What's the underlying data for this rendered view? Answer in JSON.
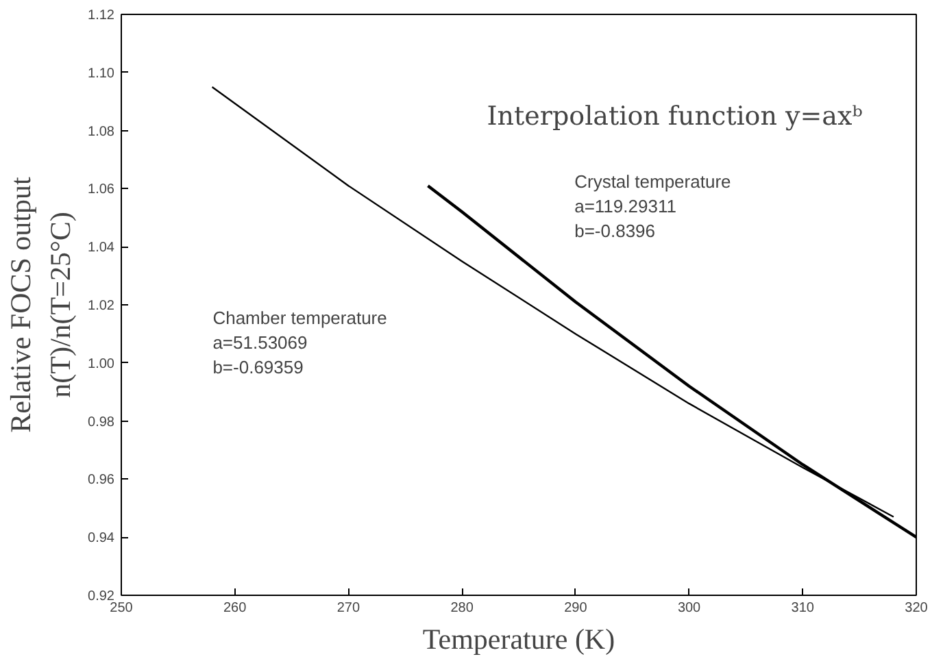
{
  "chart_data": {
    "type": "line",
    "xlabel": "Temperature (K)",
    "ylabel": "Relative FOCS output\nn(T)/n(T=25°C)",
    "xlim": [
      250,
      320
    ],
    "xticks": [
      250,
      260,
      270,
      280,
      290,
      300,
      310,
      320
    ],
    "ylim": [
      0.92,
      1.12
    ],
    "yticks": [
      0.92,
      0.94,
      0.96,
      0.98,
      {
        "value": 1,
        "label": "1.00"
      },
      1.02,
      1.04,
      1.06,
      1.08,
      {
        "value": 1.1,
        "label": "1.10"
      },
      1.12
    ],
    "grid": false,
    "marker": "none",
    "line_style": "solid",
    "series": [
      {
        "color": "#000000",
        "x": [
          258,
          270,
          280,
          290,
          300,
          310,
          318
        ],
        "values": [
          1.095,
          1.061,
          1.035,
          1.01,
          0.986,
          0.964,
          0.947
        ]
      },
      {
        "color": "#000000",
        "x": [
          277,
          280,
          290,
          300,
          310,
          320
        ],
        "values": [
          1.061,
          1.052,
          1.021,
          0.992,
          0.965,
          0.94
        ]
      }
    ],
    "annotations": [
      "Interpolation function y=axᵇ",
      "Crystal temperature\na=119.29311\nb=-0.8396",
      "Chamber temperature\na=51.53069\nb=-0.69359"
    ]
  }
}
